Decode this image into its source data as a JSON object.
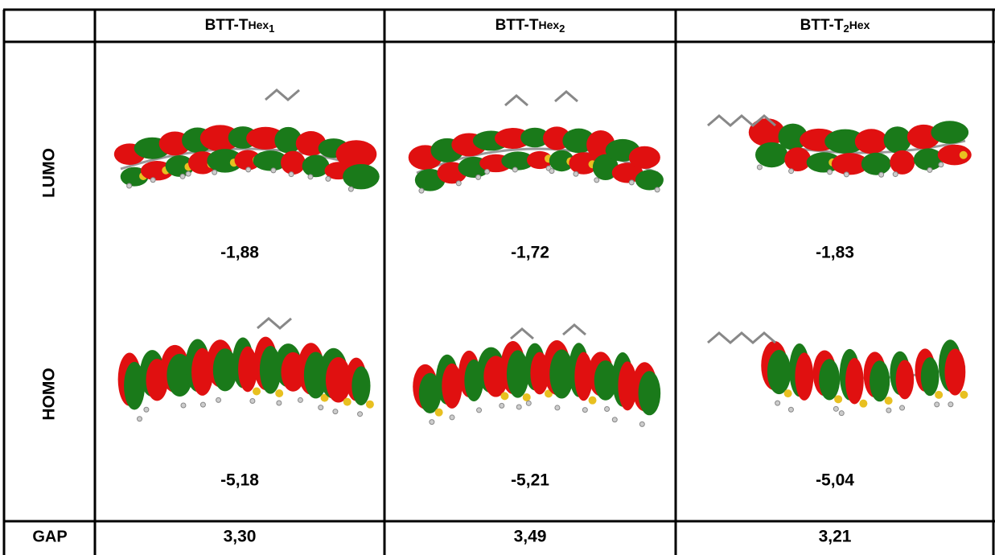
{
  "table": {
    "columns": [
      {
        "main": "BTT-T",
        "small": "Hex",
        "sub": "1"
      },
      {
        "main": "BTT-T",
        "small": "Hex",
        "sub": "2"
      },
      {
        "main": "BTT-T",
        "sub": "2",
        "small": "Hex"
      }
    ],
    "rows": [
      {
        "label": "LUMO",
        "values": [
          "-1,88",
          "-1,72",
          "-1,83"
        ]
      },
      {
        "label": "HOMO",
        "values": [
          "-5,18",
          "-5,21",
          "-5,04"
        ]
      },
      {
        "label": "GAP",
        "values": [
          "3,30",
          "3,49",
          "3,21"
        ]
      }
    ]
  }
}
